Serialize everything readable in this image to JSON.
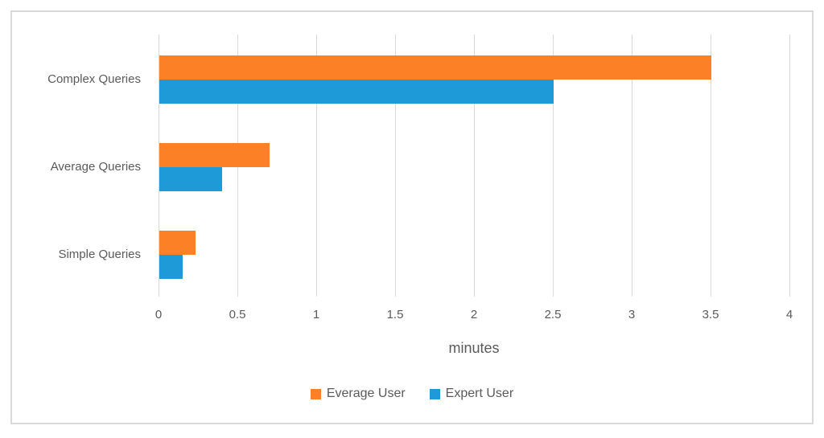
{
  "chart_data": {
    "type": "bar",
    "orientation": "horizontal",
    "title": "",
    "categories": [
      "Complex Queries",
      "Average Queries",
      "Simple Queries"
    ],
    "series": [
      {
        "name": "Everage User",
        "color": "#FC8126",
        "values": [
          3.5,
          0.7,
          0.23
        ]
      },
      {
        "name": "Expert User",
        "color": "#1D9AD7",
        "values": [
          2.5,
          0.4,
          0.15
        ]
      }
    ],
    "xlabel": "minutes",
    "xlim": [
      0,
      4
    ],
    "xtick_labels": [
      "0",
      "0.5",
      "1",
      "1.5",
      "2",
      "2.5",
      "3",
      "3.5",
      "4"
    ],
    "grid": true,
    "legend_position": "bottom",
    "colors": {
      "grid": "#D9D9D9",
      "frame_border": "#D9D9D9",
      "text": "#5A5A5A"
    }
  }
}
